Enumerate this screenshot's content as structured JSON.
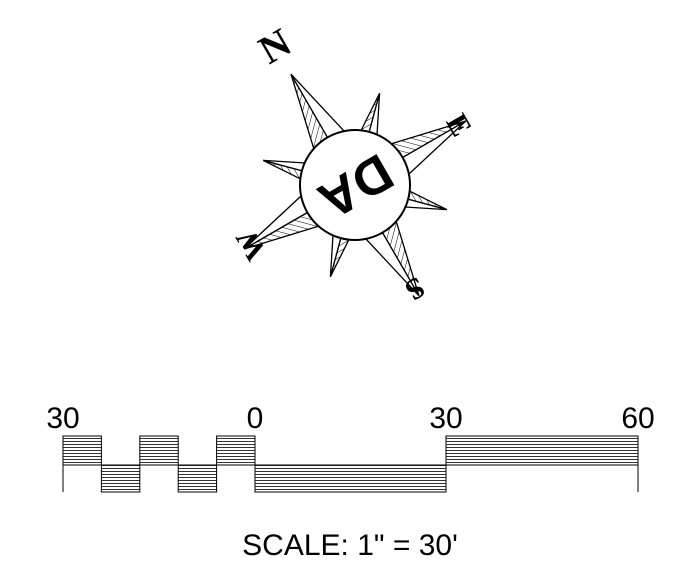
{
  "compass": {
    "north": "N",
    "east": "E",
    "south": "S",
    "west": "W",
    "logo": "DA"
  },
  "scale": {
    "labels": [
      "30",
      "0",
      "30",
      "60"
    ],
    "caption": "SCALE: 1\" = 30'"
  }
}
